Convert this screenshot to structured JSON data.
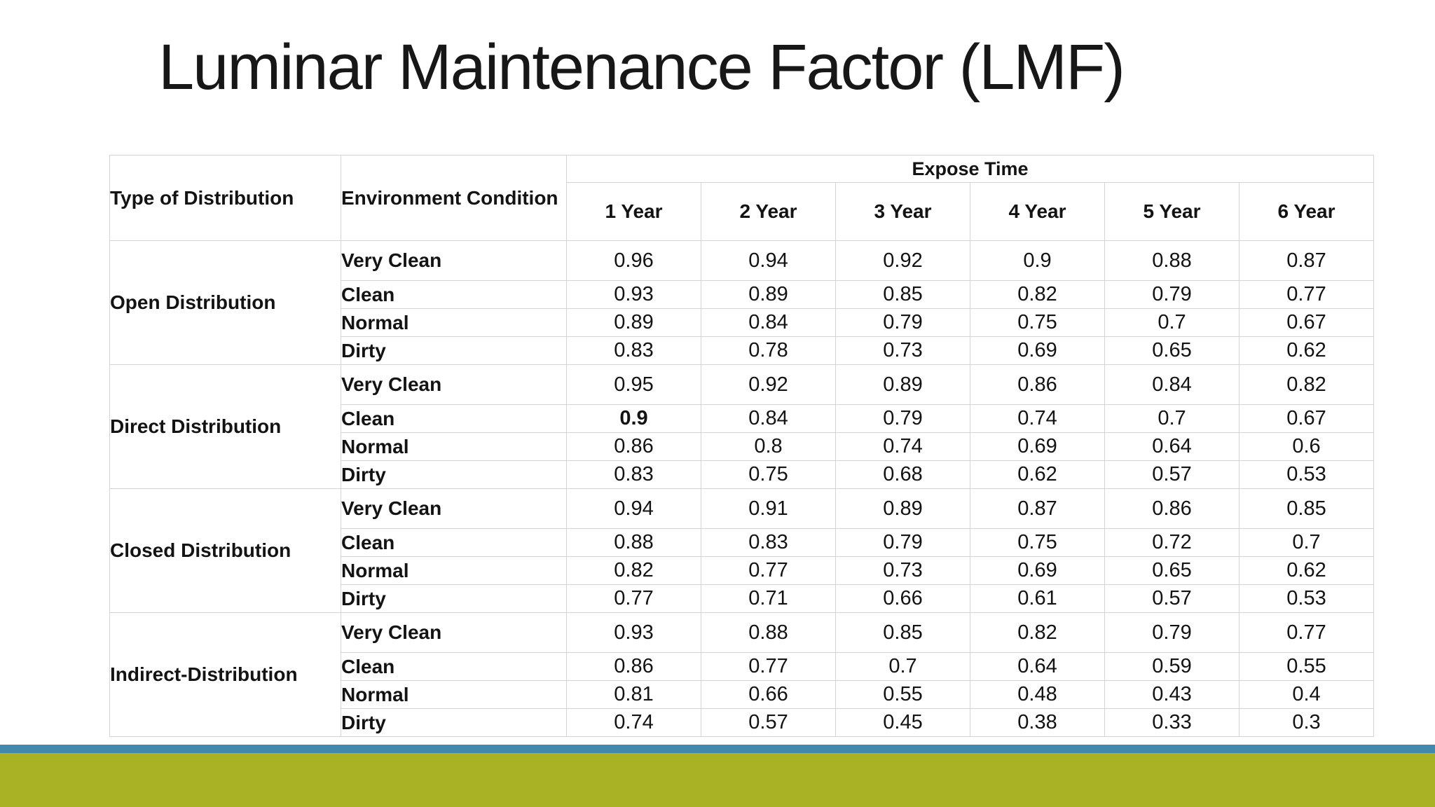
{
  "slide": {
    "title": "Luminar Maintenance Factor (LMF)",
    "colors": {
      "accent_bar_blue": "#4287ae",
      "accent_bar_olive": "#a9b124"
    }
  },
  "table": {
    "col1_header": "Type of Distribution",
    "col2_header": "Environment Condition",
    "expose_header": "Expose Time",
    "year_headers": [
      "1 Year",
      "2 Year",
      "3 Year",
      "4 Year",
      "5 Year",
      "6 Year"
    ],
    "sections": [
      {
        "label": "Open Distribution",
        "rows": [
          {
            "condition": "Very Clean",
            "values": [
              "0.96",
              "0.94",
              "0.92",
              "0.9",
              "0.88",
              "0.87"
            ]
          },
          {
            "condition": "Clean",
            "values": [
              "0.93",
              "0.89",
              "0.85",
              "0.82",
              "0.79",
              "0.77"
            ]
          },
          {
            "condition": "Normal",
            "values": [
              "0.89",
              "0.84",
              "0.79",
              "0.75",
              "0.7",
              "0.67"
            ]
          },
          {
            "condition": "Dirty",
            "values": [
              "0.83",
              "0.78",
              "0.73",
              "0.69",
              "0.65",
              "0.62"
            ]
          }
        ]
      },
      {
        "label": "Direct Distribution",
        "rows": [
          {
            "condition": "Very Clean",
            "values": [
              "0.95",
              "0.92",
              "0.89",
              "0.86",
              "0.84",
              "0.82"
            ]
          },
          {
            "condition": "Clean",
            "values": [
              "0.9",
              "0.84",
              "0.79",
              "0.74",
              "0.7",
              "0.67"
            ],
            "bold_cols": [
              0
            ]
          },
          {
            "condition": "Normal",
            "values": [
              "0.86",
              "0.8",
              "0.74",
              "0.69",
              "0.64",
              "0.6"
            ]
          },
          {
            "condition": "Dirty",
            "values": [
              "0.83",
              "0.75",
              "0.68",
              "0.62",
              "0.57",
              "0.53"
            ]
          }
        ]
      },
      {
        "label": "Closed Distribution",
        "rows": [
          {
            "condition": "Very Clean",
            "values": [
              "0.94",
              "0.91",
              "0.89",
              "0.87",
              "0.86",
              "0.85"
            ]
          },
          {
            "condition": "Clean",
            "values": [
              "0.88",
              "0.83",
              "0.79",
              "0.75",
              "0.72",
              "0.7"
            ]
          },
          {
            "condition": "Normal",
            "values": [
              "0.82",
              "0.77",
              "0.73",
              "0.69",
              "0.65",
              "0.62"
            ]
          },
          {
            "condition": "Dirty",
            "values": [
              "0.77",
              "0.71",
              "0.66",
              "0.61",
              "0.57",
              "0.53"
            ]
          }
        ]
      },
      {
        "label": "Indirect-Distribution",
        "rows": [
          {
            "condition": "Very Clean",
            "values": [
              "0.93",
              "0.88",
              "0.85",
              "0.82",
              "0.79",
              "0.77"
            ]
          },
          {
            "condition": "Clean",
            "values": [
              "0.86",
              "0.77",
              "0.7",
              "0.64",
              "0.59",
              "0.55"
            ]
          },
          {
            "condition": "Normal",
            "values": [
              "0.81",
              "0.66",
              "0.55",
              "0.48",
              "0.43",
              "0.4"
            ]
          },
          {
            "condition": "Dirty",
            "values": [
              "0.74",
              "0.57",
              "0.45",
              "0.38",
              "0.33",
              "0.3"
            ]
          }
        ]
      }
    ]
  }
}
